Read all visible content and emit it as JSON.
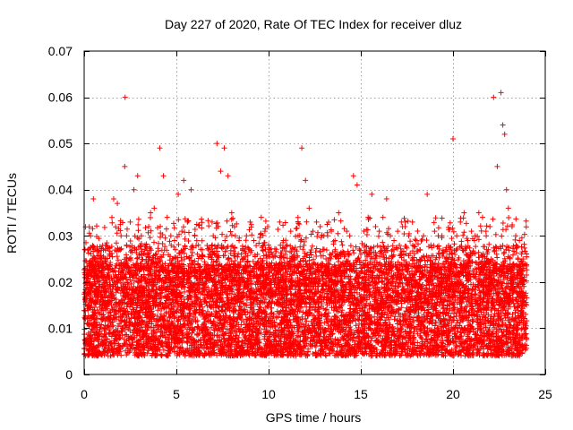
{
  "chart_data": {
    "type": "scatter",
    "title": "Day 227 of 2020, Rate Of TEC Index for receiver dluz",
    "xlabel": "GPS time / hours",
    "ylabel": "ROTI / TECUs",
    "xlim": [
      0,
      25
    ],
    "ylim": [
      0,
      0.07
    ],
    "xticks": [
      0,
      5,
      10,
      15,
      20,
      25
    ],
    "yticks": [
      0,
      0.01,
      0.02,
      0.03,
      0.04,
      0.05,
      0.06,
      0.07
    ],
    "xtick_labels": [
      "0",
      "5",
      "10",
      "15",
      "20",
      "25"
    ],
    "ytick_labels": [
      "0",
      "0.01",
      "0.02",
      "0.03",
      "0.04",
      "0.05",
      "0.06",
      "0.07"
    ],
    "grid": true,
    "marker": "plus",
    "series": [
      {
        "name": "ROTI",
        "color": "#ff0000",
        "x": [
          0.05,
          0.2,
          0.35,
          0.5,
          0.6,
          0.8,
          1.0,
          1.2,
          1.4,
          1.6,
          1.8,
          2.0,
          2.2,
          2.22,
          2.3,
          2.5,
          2.7,
          2.9,
          3.1,
          3.3,
          3.5,
          3.6,
          3.8,
          4.0,
          4.1,
          4.3,
          4.5,
          4.7,
          4.9,
          5.1,
          5.3,
          5.4,
          5.6,
          5.8,
          6.0,
          6.2,
          6.4,
          6.6,
          6.8,
          7.0,
          7.2,
          7.4,
          7.6,
          7.8,
          8.0,
          8.2,
          8.4,
          8.6,
          8.8,
          9.0,
          9.2,
          9.4,
          9.6,
          9.8,
          10.0,
          10.2,
          10.4,
          10.6,
          10.8,
          11.0,
          11.2,
          11.4,
          11.6,
          11.8,
          12.0,
          12.2,
          12.4,
          12.6,
          12.8,
          13.0,
          13.2,
          13.4,
          13.6,
          13.8,
          14.0,
          14.2,
          14.4,
          14.6,
          14.8,
          15.0,
          15.2,
          15.4,
          15.6,
          15.8,
          16.0,
          16.2,
          16.4,
          16.6,
          16.8,
          17.0,
          17.2,
          17.4,
          17.6,
          17.8,
          18.0,
          18.2,
          18.4,
          18.6,
          18.8,
          19.0,
          19.2,
          19.4,
          19.6,
          19.8,
          20.0,
          20.2,
          20.4,
          20.6,
          20.8,
          21.0,
          21.2,
          21.4,
          21.6,
          21.8,
          22.0,
          22.2,
          22.4,
          22.6,
          22.7,
          22.8,
          22.9,
          23.0,
          23.2,
          23.4,
          23.6,
          23.8,
          23.9
        ],
        "y": [
          0.027,
          0.022,
          0.03,
          0.038,
          0.025,
          0.019,
          0.021,
          0.028,
          0.026,
          0.038,
          0.037,
          0.03,
          0.045,
          0.06,
          0.03,
          0.033,
          0.04,
          0.043,
          0.03,
          0.028,
          0.032,
          0.035,
          0.036,
          0.025,
          0.049,
          0.043,
          0.034,
          0.03,
          0.029,
          0.039,
          0.031,
          0.042,
          0.033,
          0.04,
          0.03,
          0.028,
          0.027,
          0.02,
          0.026,
          0.03,
          0.05,
          0.044,
          0.049,
          0.043,
          0.035,
          0.03,
          0.029,
          0.027,
          0.03,
          0.033,
          0.029,
          0.026,
          0.034,
          0.031,
          0.028,
          0.026,
          0.024,
          0.033,
          0.029,
          0.028,
          0.031,
          0.026,
          0.03,
          0.049,
          0.042,
          0.036,
          0.031,
          0.033,
          0.032,
          0.03,
          0.03,
          0.031,
          0.029,
          0.035,
          0.028,
          0.024,
          0.03,
          0.043,
          0.041,
          0.026,
          0.028,
          0.034,
          0.039,
          0.032,
          0.031,
          0.034,
          0.038,
          0.03,
          0.029,
          0.031,
          0.033,
          0.032,
          0.03,
          0.033,
          0.029,
          0.027,
          0.03,
          0.039,
          0.028,
          0.031,
          0.03,
          0.03,
          0.027,
          0.026,
          0.051,
          0.03,
          0.033,
          0.035,
          0.029,
          0.031,
          0.03,
          0.035,
          0.034,
          0.03,
          0.032,
          0.06,
          0.045,
          0.061,
          0.054,
          0.052,
          0.04,
          0.036,
          0.032,
          0.03,
          0.029,
          0.025,
          0.024
        ],
        "envelope_note": "dense band of markers between approximately 0.003 and 0.025 across 0-24 h"
      }
    ]
  }
}
